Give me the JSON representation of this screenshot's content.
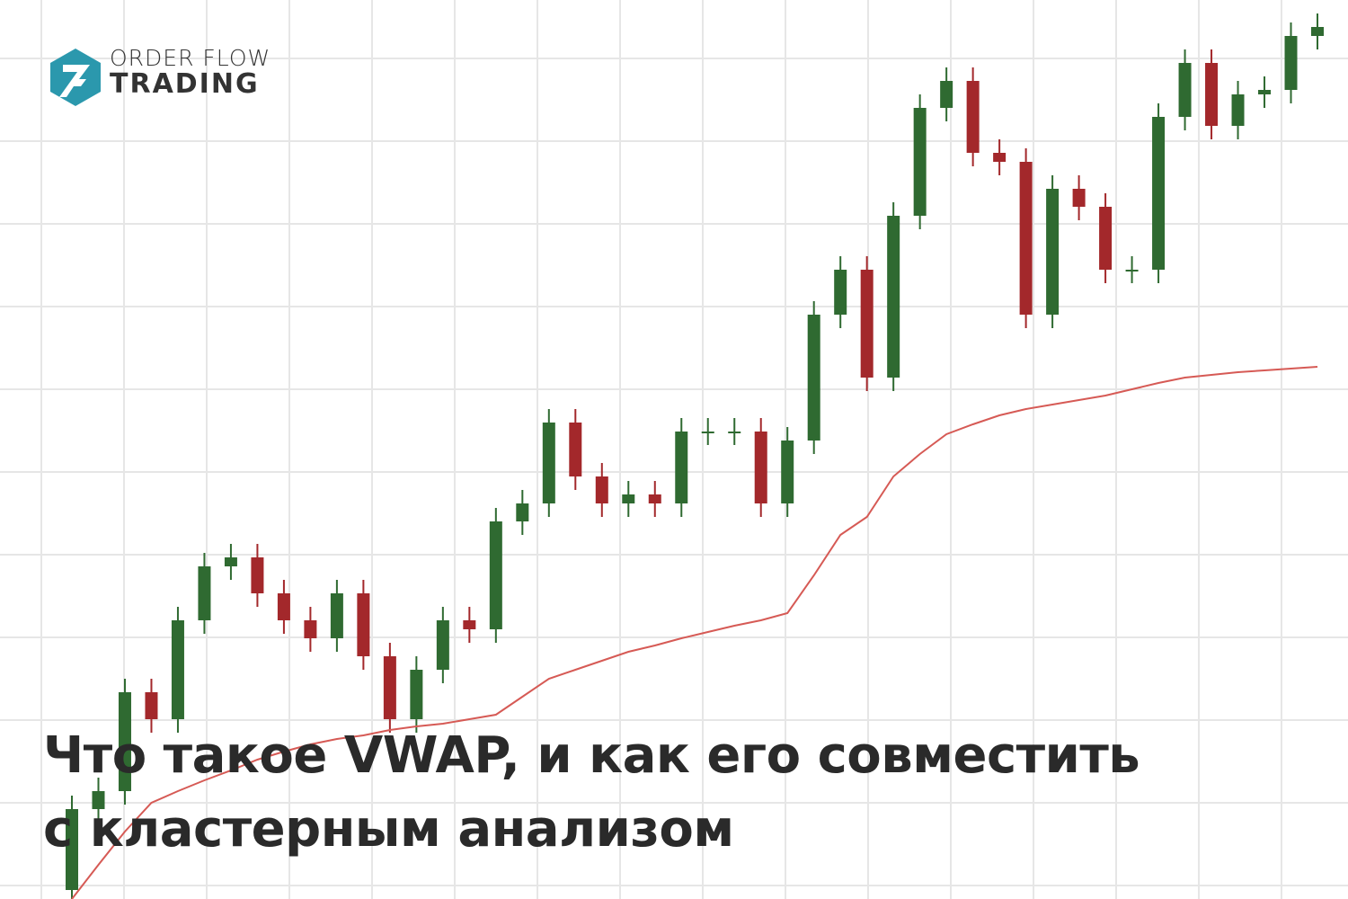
{
  "header": {
    "logo_top": "ORDER FLOW",
    "logo_bottom": "TRADING",
    "title": [
      "Что такое VWAP, и как его совместить",
      "с кластерным анализом"
    ]
  },
  "chart_data": {
    "type": "candlestick",
    "ylim": [
      0,
      1000
    ],
    "up_color": "#2f6a31",
    "down_color": "#a3282b",
    "open": [
      10,
      100,
      120,
      230,
      200,
      310,
      370,
      380,
      340,
      310,
      290,
      340,
      270,
      200,
      255,
      310,
      300,
      420,
      440,
      530,
      470,
      440,
      450,
      440,
      520,
      520,
      520,
      440,
      510,
      650,
      700,
      580,
      760,
      880,
      910,
      830,
      820,
      650,
      790,
      770,
      700,
      700,
      870,
      930,
      860,
      895,
      900,
      960
    ],
    "high": [
      115,
      135,
      245,
      245,
      325,
      385,
      395,
      395,
      355,
      325,
      355,
      355,
      285,
      270,
      325,
      325,
      435,
      455,
      545,
      545,
      485,
      465,
      465,
      535,
      535,
      535,
      535,
      525,
      665,
      715,
      715,
      775,
      895,
      925,
      925,
      845,
      835,
      805,
      805,
      785,
      715,
      885,
      945,
      945,
      910,
      915,
      975,
      985
    ],
    "low": [
      0,
      85,
      105,
      185,
      185,
      295,
      355,
      325,
      295,
      275,
      275,
      255,
      185,
      185,
      240,
      285,
      285,
      405,
      425,
      455,
      425,
      425,
      425,
      425,
      505,
      505,
      425,
      425,
      495,
      635,
      565,
      565,
      745,
      865,
      815,
      805,
      635,
      635,
      755,
      685,
      685,
      685,
      855,
      845,
      845,
      880,
      885,
      945
    ],
    "close": [
      100,
      120,
      230,
      200,
      310,
      370,
      380,
      340,
      310,
      290,
      340,
      270,
      200,
      255,
      310,
      300,
      420,
      440,
      530,
      470,
      440,
      450,
      440,
      520,
      520,
      520,
      440,
      510,
      650,
      700,
      580,
      760,
      880,
      910,
      830,
      820,
      650,
      790,
      770,
      700,
      700,
      870,
      930,
      860,
      895,
      900,
      960,
      970
    ],
    "vwap": {
      "color": "#d65a55",
      "values": [
        0,
        38,
        75,
        107,
        120,
        132,
        143,
        155,
        164,
        172,
        178,
        182,
        188,
        192,
        195,
        200,
        205,
        225,
        245,
        255,
        265,
        275,
        282,
        290,
        297,
        304,
        310,
        318,
        360,
        405,
        425,
        470,
        495,
        517,
        528,
        538,
        545,
        550,
        555,
        560,
        567,
        574,
        580,
        583,
        586,
        588,
        590,
        592
      ]
    }
  }
}
